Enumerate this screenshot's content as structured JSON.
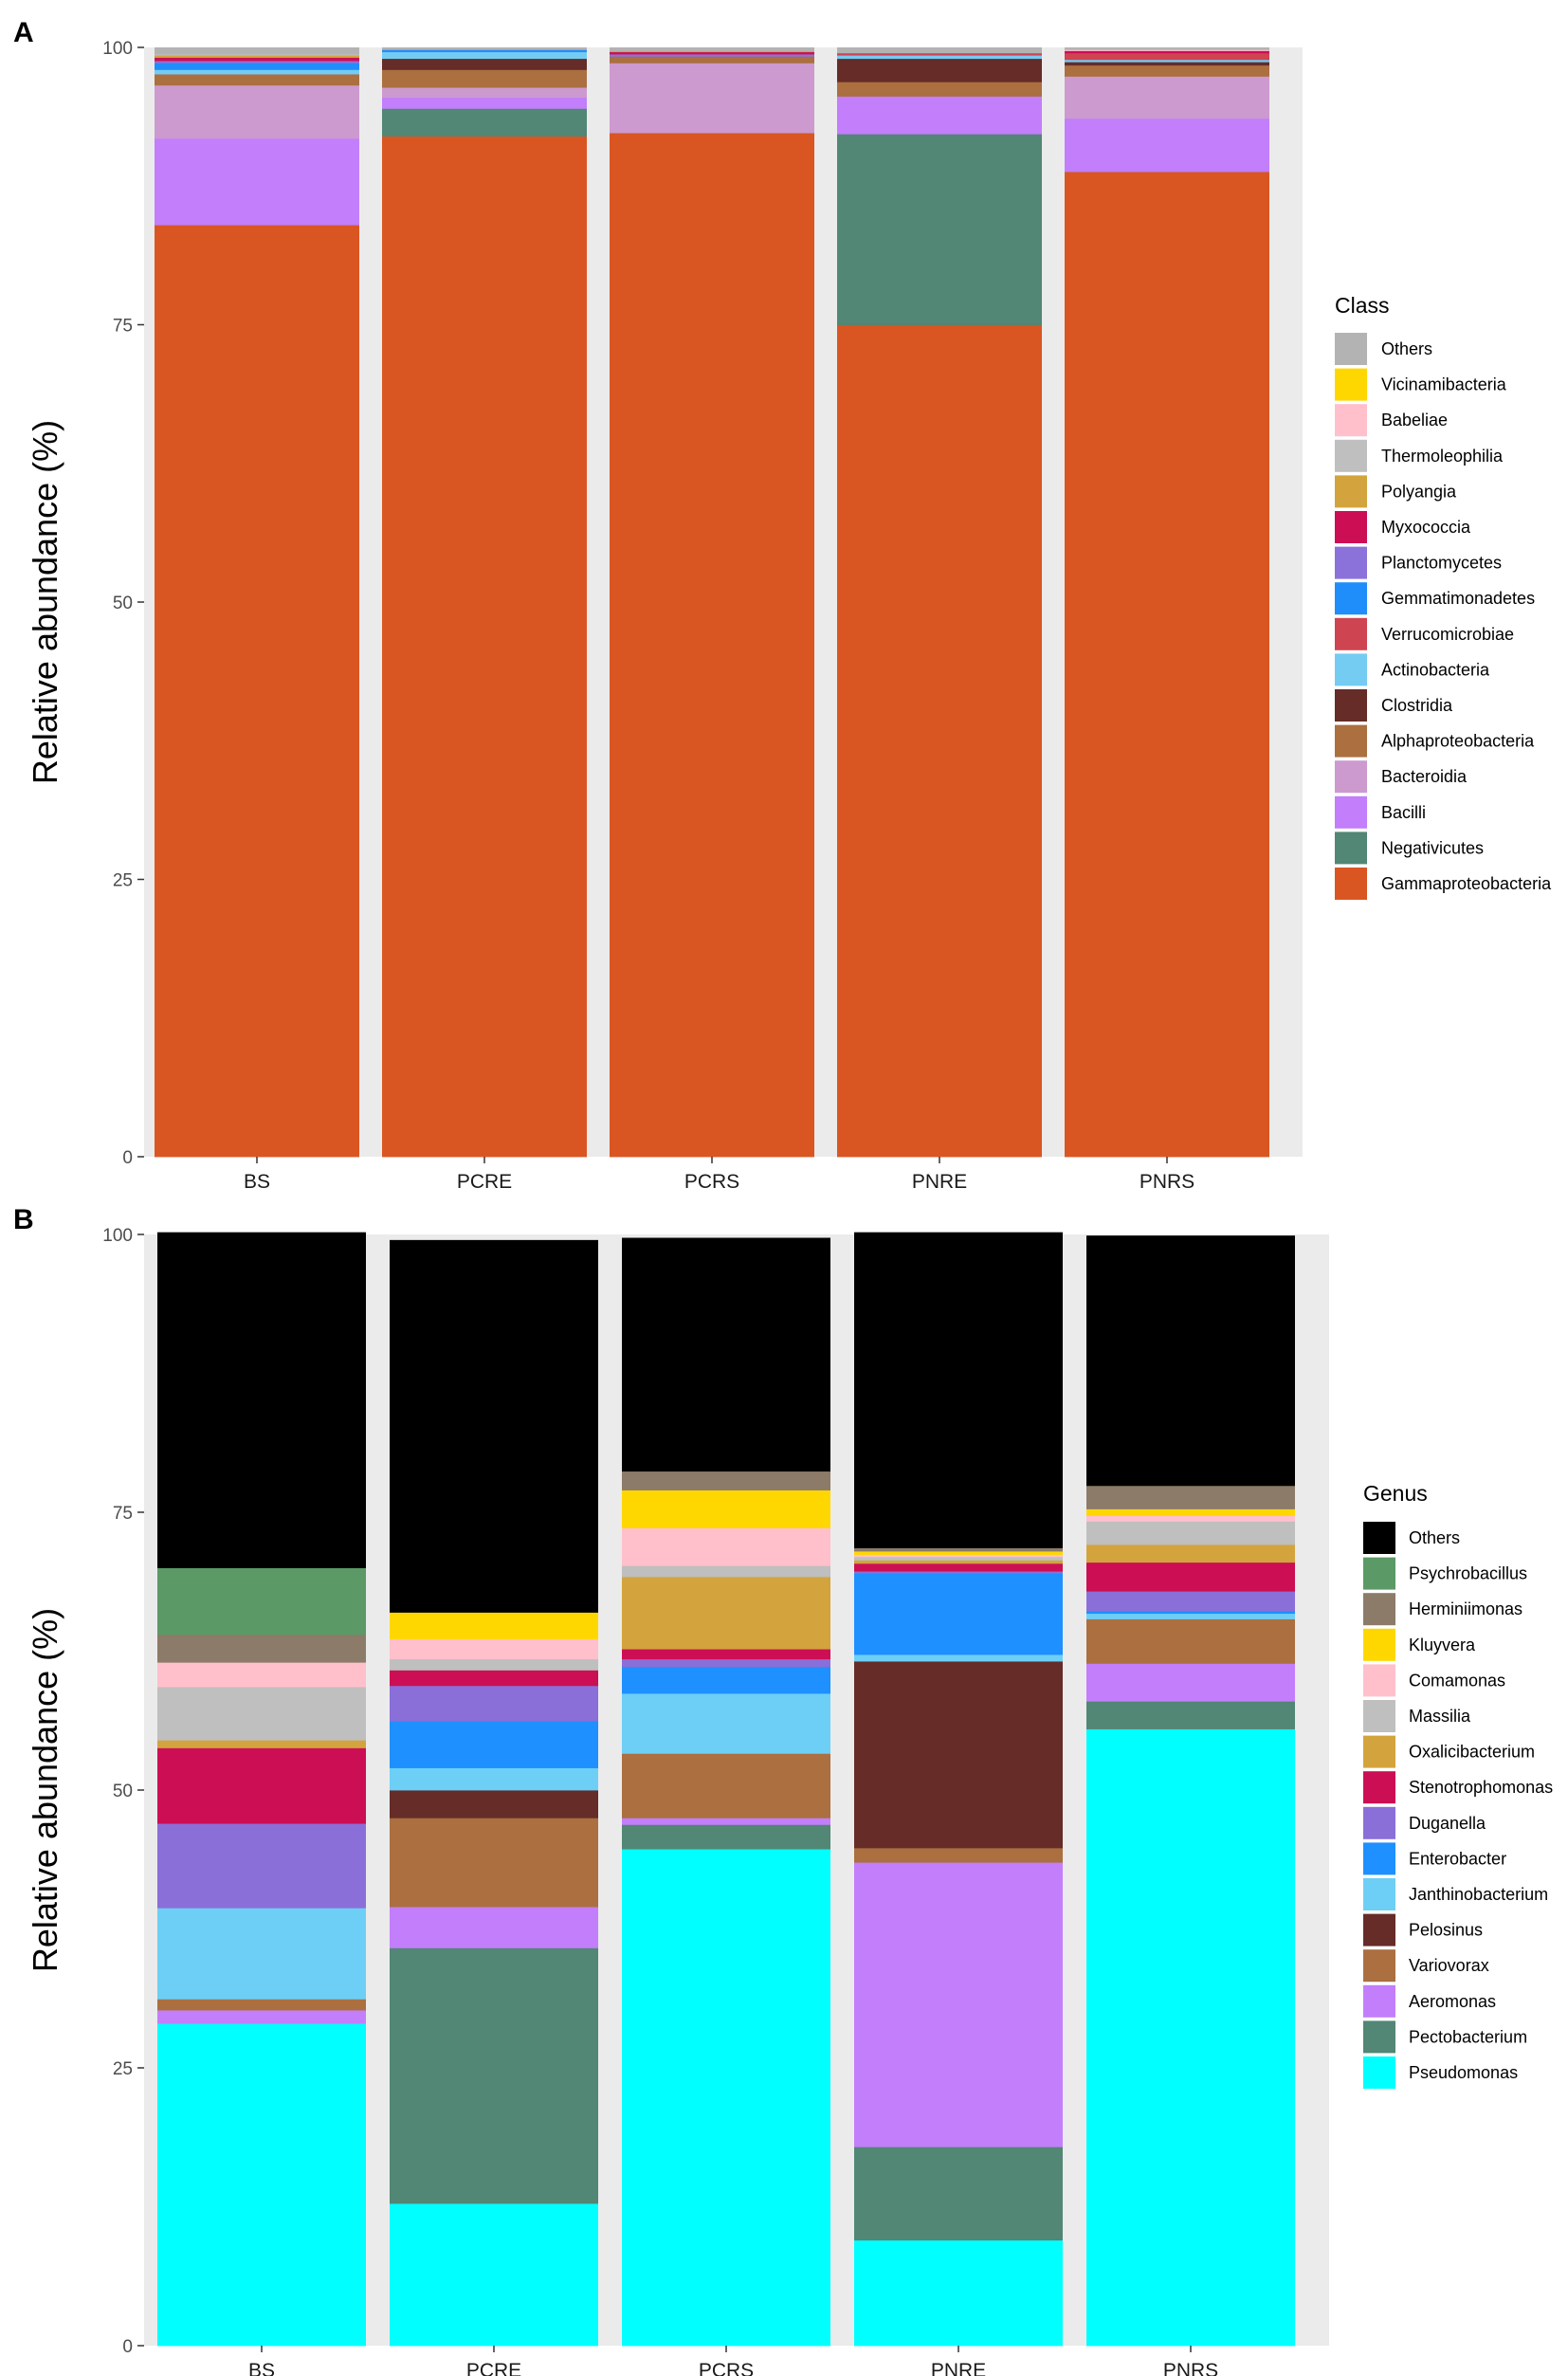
{
  "chart_data": [
    {
      "type": "bar",
      "stacked": true,
      "panel_label": "A",
      "title": "",
      "xlabel": "",
      "ylabel": "Relative abundance (%)",
      "ylim": [
        0,
        100
      ],
      "yticks": [
        "0",
        "25",
        "50",
        "75",
        "100"
      ],
      "categories": [
        "BS",
        "PCRE",
        "PCRS",
        "PNRE",
        "PNRS"
      ],
      "legend_title": "Class",
      "series": [
        {
          "name": "Gammaproteobacteria",
          "color": "#D95622",
          "values": [
            84.0,
            92.0,
            92.3,
            75.0,
            88.8
          ]
        },
        {
          "name": "Negativicutes",
          "color": "#528675",
          "values": [
            0.0,
            2.5,
            0.0,
            17.2,
            0.0
          ]
        },
        {
          "name": "Bacilli",
          "color": "#C27EFB",
          "values": [
            7.8,
            1.0,
            0.0,
            3.4,
            4.8
          ]
        },
        {
          "name": "Bacteroidia",
          "color": "#CC9ACF",
          "values": [
            4.8,
            0.9,
            6.3,
            0.0,
            3.8
          ]
        },
        {
          "name": "Alphaproteobacteria",
          "color": "#AB6F40",
          "values": [
            1.0,
            1.6,
            0.6,
            1.3,
            1.0
          ]
        },
        {
          "name": "Clostridia",
          "color": "#652C28",
          "values": [
            0.0,
            1.0,
            0.0,
            2.1,
            0.3
          ]
        },
        {
          "name": "Actinobacteria",
          "color": "#74CCF3",
          "values": [
            0.4,
            0.6,
            0.0,
            0.3,
            0.2
          ]
        },
        {
          "name": "Verrucomicrobiae",
          "color": "#CE4450",
          "values": [
            0.0,
            0.0,
            0.0,
            0.2,
            0.6
          ]
        },
        {
          "name": "Gemmatimonadetes",
          "color": "#1F8EFA",
          "values": [
            0.6,
            0.2,
            0.0,
            0.0,
            0.0
          ]
        },
        {
          "name": "Planctomycetes",
          "color": "#8B72DB",
          "values": [
            0.2,
            0.0,
            0.2,
            0.0,
            0.0
          ]
        },
        {
          "name": "Myxococcia",
          "color": "#CC0E54",
          "values": [
            0.3,
            0.0,
            0.2,
            0.0,
            0.2
          ]
        },
        {
          "name": "Polyangia",
          "color": "#D3A43D",
          "values": [
            0.2,
            0.0,
            0.1,
            0.0,
            0.0
          ]
        },
        {
          "name": "Thermoleophilia",
          "color": "#BFBFBF",
          "values": [
            0.1,
            0.0,
            0.0,
            0.0,
            0.0
          ]
        },
        {
          "name": "Babeliae",
          "color": "#FFC0CC",
          "values": [
            0.0,
            0.0,
            0.0,
            0.0,
            0.1
          ]
        },
        {
          "name": "Vicinamibacteria",
          "color": "#FFD700",
          "values": [
            0.0,
            0.0,
            0.0,
            0.0,
            0.0
          ]
        },
        {
          "name": "Others",
          "color": "#B3B3B3",
          "values": [
            0.6,
            0.2,
            0.3,
            0.5,
            0.2
          ]
        }
      ]
    },
    {
      "type": "bar",
      "stacked": true,
      "panel_label": "B",
      "title": "",
      "xlabel": "",
      "ylabel": "Relative abundance (%)",
      "ylim": [
        0,
        100
      ],
      "yticks": [
        "0",
        "25",
        "50",
        "75",
        "100"
      ],
      "categories": [
        "BS",
        "PCRE",
        "PCRS",
        "PNRE",
        "PNRS"
      ],
      "legend_title": "Genus",
      "series": [
        {
          "name": "Pseudomonas",
          "color": "#00FFFF",
          "values": [
            29.0,
            12.8,
            44.7,
            9.5,
            55.5
          ]
        },
        {
          "name": "Pectobacterium",
          "color": "#528675",
          "values": [
            0.0,
            23.0,
            2.2,
            8.4,
            2.5
          ]
        },
        {
          "name": "Aeromonas",
          "color": "#C27EFB",
          "values": [
            1.2,
            3.7,
            0.6,
            25.6,
            3.4
          ]
        },
        {
          "name": "Variovorax",
          "color": "#AB6F40",
          "values": [
            1.0,
            8.0,
            5.8,
            1.3,
            4.0
          ]
        },
        {
          "name": "Pelosinus",
          "color": "#652C28",
          "values": [
            0.0,
            2.5,
            0.0,
            16.8,
            0.0
          ]
        },
        {
          "name": "Janthinobacterium",
          "color": "#6DCFF6",
          "values": [
            8.2,
            2.0,
            5.4,
            0.6,
            0.5
          ]
        },
        {
          "name": "Enterobacter",
          "color": "#1E90FF",
          "values": [
            0.0,
            4.2,
            2.4,
            7.3,
            0.2
          ]
        },
        {
          "name": "Duganella",
          "color": "#8A6FD9",
          "values": [
            7.6,
            3.2,
            0.7,
            0.2,
            1.8
          ]
        },
        {
          "name": "Stenotrophomonas",
          "color": "#CC0E54",
          "values": [
            6.8,
            1.4,
            0.9,
            0.7,
            2.6
          ]
        },
        {
          "name": "Oxalicibacterium",
          "color": "#D3A43D",
          "values": [
            0.7,
            0.0,
            6.5,
            0.3,
            1.6
          ]
        },
        {
          "name": "Massilia",
          "color": "#BFBFBF",
          "values": [
            4.8,
            1.0,
            1.0,
            0.3,
            2.1
          ]
        },
        {
          "name": "Comamonas",
          "color": "#FFC0CC",
          "values": [
            2.2,
            1.8,
            3.4,
            0.2,
            0.5
          ]
        },
        {
          "name": "Kluyvera",
          "color": "#FFD700",
          "values": [
            0.0,
            2.4,
            3.4,
            0.3,
            0.6
          ]
        },
        {
          "name": "Herminiimonas",
          "color": "#8C7B69",
          "values": [
            2.5,
            0.0,
            1.7,
            0.3,
            2.1
          ]
        },
        {
          "name": "Psychrobacillus",
          "color": "#5B9966",
          "values": [
            6.0,
            0.0,
            0.0,
            0.0,
            0.0
          ]
        },
        {
          "name": "Others",
          "color": "#000000",
          "values": [
            30.2,
            33.5,
            21.0,
            28.4,
            22.5
          ]
        }
      ]
    }
  ]
}
